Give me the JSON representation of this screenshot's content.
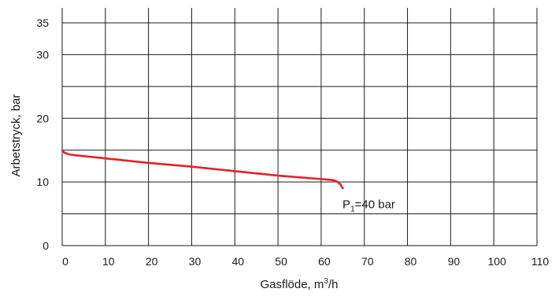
{
  "chart_data": {
    "type": "line",
    "title": "",
    "xlabel": "Gasflöde, m",
    "xlabel_sup": "3",
    "xlabel_suffix": "/h",
    "ylabel": "Arbetstryck, bar",
    "xlim": [
      0,
      110
    ],
    "ylim": [
      0,
      35
    ],
    "x_ticks": [
      0,
      10,
      20,
      30,
      40,
      50,
      60,
      70,
      80,
      90,
      100,
      110
    ],
    "y_ticks": [
      0,
      10,
      20,
      30,
      35
    ],
    "y_gridlines": [
      0,
      5,
      10,
      15,
      20,
      25,
      30,
      35
    ],
    "grid": true,
    "series": [
      {
        "name": "P1=40 bar",
        "color": "#e3222a",
        "x": [
          0,
          0.5,
          1.5,
          3,
          10,
          20,
          30,
          40,
          50,
          60,
          62,
          63,
          63.8,
          64.5,
          65
        ],
        "y": [
          15.0,
          14.6,
          14.35,
          14.2,
          13.7,
          13.0,
          12.4,
          11.7,
          11.0,
          10.45,
          10.35,
          10.25,
          10.0,
          9.6,
          9.0
        ]
      }
    ],
    "annotation": {
      "prefix": "P",
      "sub": "1",
      "suffix": "=40 bar",
      "x": 65.5,
      "y": 6.5
    }
  }
}
